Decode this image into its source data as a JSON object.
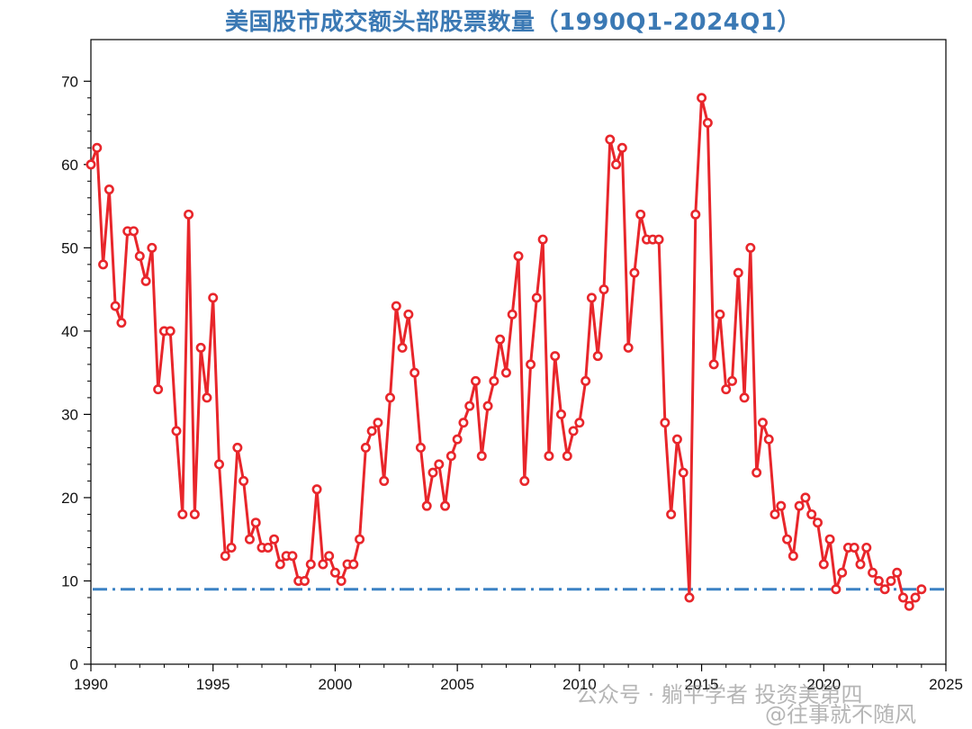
{
  "chart_data": {
    "type": "line",
    "title": "美国股市成交额头部股票数量（1990Q1-2024Q1）",
    "xlabel": "",
    "ylabel": "",
    "xlim": [
      1990,
      2025
    ],
    "ylim": [
      0,
      75
    ],
    "xticks": [
      1990,
      1995,
      2000,
      2005,
      2010,
      2015,
      2020,
      2025
    ],
    "yticks": [
      0,
      10,
      20,
      30,
      40,
      50,
      60,
      70
    ],
    "grid": false,
    "legend": "none",
    "series": [
      {
        "color": "#e8262b",
        "marker": "open-circle",
        "x": [
          1990.0,
          1990.25,
          1990.5,
          1990.75,
          1991.0,
          1991.25,
          1991.5,
          1991.75,
          1992.0,
          1992.25,
          1992.5,
          1992.75,
          1993.0,
          1993.25,
          1993.5,
          1993.75,
          1994.0,
          1994.25,
          1994.5,
          1994.75,
          1995.0,
          1995.25,
          1995.5,
          1995.75,
          1996.0,
          1996.25,
          1996.5,
          1996.75,
          1997.0,
          1997.25,
          1997.5,
          1997.75,
          1998.0,
          1998.25,
          1998.5,
          1998.75,
          1999.0,
          1999.25,
          1999.5,
          1999.75,
          2000.0,
          2000.25,
          2000.5,
          2000.75,
          2001.0,
          2001.25,
          2001.5,
          2001.75,
          2002.0,
          2002.25,
          2002.5,
          2002.75,
          2003.0,
          2003.25,
          2003.5,
          2003.75,
          2004.0,
          2004.25,
          2004.5,
          2004.75,
          2005.0,
          2005.25,
          2005.5,
          2005.75,
          2006.0,
          2006.25,
          2006.5,
          2006.75,
          2007.0,
          2007.25,
          2007.5,
          2007.75,
          2008.0,
          2008.25,
          2008.5,
          2008.75,
          2009.0,
          2009.25,
          2009.5,
          2009.75,
          2010.0,
          2010.25,
          2010.5,
          2010.75,
          2011.0,
          2011.25,
          2011.5,
          2011.75,
          2012.0,
          2012.25,
          2012.5,
          2012.75,
          2013.0,
          2013.25,
          2013.5,
          2013.75,
          2014.0,
          2014.25,
          2014.5,
          2014.75,
          2015.0,
          2015.25,
          2015.5,
          2015.75,
          2016.0,
          2016.25,
          2016.5,
          2016.75,
          2017.0,
          2017.25,
          2017.5,
          2017.75,
          2018.0,
          2018.25,
          2018.5,
          2018.75,
          2019.0,
          2019.25,
          2019.5,
          2019.75,
          2020.0,
          2020.25,
          2020.5,
          2020.75,
          2021.0,
          2021.25,
          2021.5,
          2021.75,
          2022.0,
          2022.25,
          2022.5,
          2022.75,
          2023.0,
          2023.25,
          2023.5,
          2023.75,
          2024.0
        ],
        "y": [
          60,
          62,
          48,
          57,
          43,
          41,
          52,
          52,
          49,
          46,
          50,
          33,
          40,
          40,
          28,
          18,
          54,
          18,
          38,
          32,
          44,
          24,
          13,
          14,
          26,
          22,
          15,
          17,
          14,
          14,
          15,
          12,
          13,
          13,
          10,
          10,
          12,
          21,
          12,
          13,
          11,
          10,
          12,
          12,
          15,
          26,
          28,
          29,
          22,
          32,
          43,
          38,
          42,
          35,
          26,
          19,
          23,
          24,
          19,
          25,
          27,
          29,
          31,
          34,
          25,
          31,
          34,
          39,
          35,
          42,
          49,
          22,
          36,
          44,
          51,
          25,
          37,
          30,
          25,
          28,
          29,
          34,
          44,
          37,
          45,
          63,
          60,
          62,
          38,
          47,
          54,
          51,
          51,
          51,
          29,
          18,
          27,
          23,
          8,
          54,
          68,
          65,
          36,
          42,
          33,
          34,
          47,
          32,
          50,
          23,
          29,
          27,
          18,
          19,
          15,
          13,
          19,
          20,
          18,
          17,
          12,
          15,
          9,
          11,
          14,
          14,
          12,
          14,
          11,
          10,
          9,
          10,
          11,
          8,
          7,
          8,
          9
        ]
      }
    ],
    "reference_line": {
      "y": 9,
      "color": "#3b82c4",
      "style": "dash-dot"
    }
  },
  "watermarks": [
    "公众号 · 躺平学者 投资美第四",
    "@往事就不随风"
  ]
}
